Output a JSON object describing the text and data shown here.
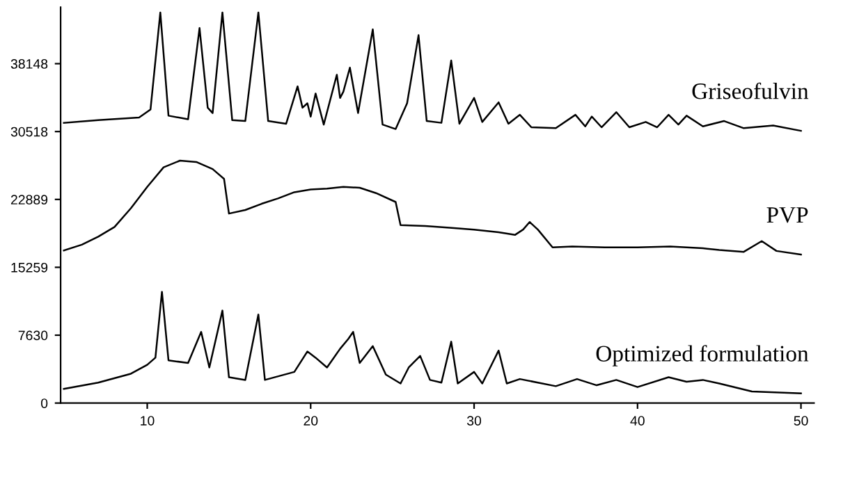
{
  "chart_data": {
    "type": "line",
    "xlim": [
      4.7,
      50.8
    ],
    "ylim": [
      0,
      44500
    ],
    "xticks": [
      10,
      20,
      30,
      40,
      50
    ],
    "yticks": [
      0,
      7630,
      15259,
      22889,
      30518,
      38148
    ],
    "grid": false,
    "legend": false,
    "marker": "none",
    "line_style": "solid",
    "series": [
      {
        "name": "Griseofulvin",
        "color": "#000000",
        "x": [
          4.9,
          7,
          9.5,
          10.2,
          10.8,
          11.3,
          12.5,
          13.2,
          13.7,
          14.0,
          14.6,
          15.2,
          16.0,
          16.8,
          17.4,
          18.5,
          19.2,
          19.5,
          19.8,
          20.0,
          20.3,
          20.8,
          21.6,
          21.8,
          22.0,
          22.4,
          22.9,
          23.8,
          24.4,
          25.2,
          25.9,
          26.6,
          27.1,
          28.0,
          28.6,
          29.1,
          30.0,
          30.5,
          31.5,
          32.1,
          32.8,
          33.5,
          35.0,
          36.2,
          36.8,
          37.2,
          37.8,
          38.7,
          39.5,
          40.5,
          41.2,
          41.9,
          42.5,
          43.0,
          44.0,
          45.3,
          46.5,
          48.3,
          50.0
        ],
        "values": [
          31500,
          31800,
          32100,
          33000,
          43900,
          32300,
          31900,
          42150,
          33200,
          32600,
          43900,
          31800,
          31700,
          43900,
          31700,
          31400,
          35600,
          33200,
          33700,
          32200,
          34800,
          31300,
          36900,
          34300,
          35000,
          37700,
          32600,
          42000,
          31300,
          30800,
          33700,
          41350,
          31700,
          31500,
          38500,
          31400,
          34300,
          31600,
          33800,
          31400,
          32400,
          31000,
          30900,
          32400,
          31100,
          32200,
          31000,
          32700,
          31000,
          31600,
          31000,
          32400,
          31300,
          32300,
          31100,
          31700,
          30900,
          31200,
          30600
        ]
      },
      {
        "name": "PVP",
        "color": "#000000",
        "x": [
          4.9,
          6,
          7,
          8,
          9,
          10,
          11,
          12,
          13,
          14,
          14.7,
          15.0,
          16,
          17,
          18,
          19,
          20,
          21,
          22,
          23,
          24,
          25.2,
          25.5,
          27,
          28.5,
          30,
          31.5,
          32.5,
          33.0,
          33.4,
          33.9,
          34.8,
          36,
          38,
          40,
          42,
          44,
          45,
          46.5,
          47.6,
          48.5,
          50.0
        ],
        "values": [
          17150,
          17800,
          18700,
          19800,
          21900,
          24300,
          26500,
          27250,
          27100,
          26300,
          25200,
          21300,
          21700,
          22400,
          23000,
          23700,
          24000,
          24100,
          24300,
          24200,
          23600,
          22600,
          20000,
          19900,
          19700,
          19500,
          19200,
          18900,
          19500,
          20350,
          19500,
          17500,
          17600,
          17500,
          17500,
          17600,
          17400,
          17200,
          17000,
          18200,
          17100,
          16700
        ]
      },
      {
        "name": "Optimized formulation",
        "color": "#000000",
        "x": [
          4.9,
          7,
          9,
          10,
          10.5,
          10.9,
          11.3,
          12.5,
          13.3,
          13.8,
          14.6,
          15.0,
          16.0,
          16.8,
          17.2,
          19.0,
          19.8,
          20.3,
          21.0,
          21.8,
          22.3,
          22.6,
          23.0,
          23.8,
          24.6,
          25.5,
          26.0,
          26.7,
          27.3,
          28.0,
          28.6,
          29.0,
          30.0,
          30.5,
          31.5,
          32.0,
          32.8,
          35.0,
          36.3,
          37.5,
          38.7,
          40.0,
          41.9,
          43.0,
          44.0,
          45.0,
          47.0,
          50.0
        ],
        "values": [
          1600,
          2300,
          3300,
          4300,
          5100,
          12500,
          4800,
          4500,
          8000,
          4000,
          10400,
          2900,
          2600,
          9950,
          2600,
          3500,
          5800,
          5100,
          4000,
          6100,
          7200,
          8000,
          4500,
          6400,
          3200,
          2200,
          4000,
          5300,
          2600,
          2300,
          6900,
          2200,
          3500,
          2200,
          5900,
          2200,
          2700,
          1900,
          2700,
          2000,
          2600,
          1800,
          2900,
          2400,
          2600,
          2200,
          1300,
          1100
        ]
      }
    ]
  }
}
